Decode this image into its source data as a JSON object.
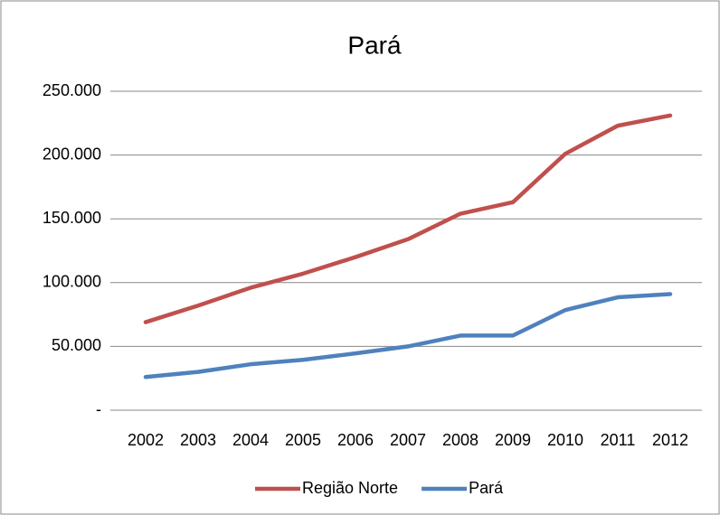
{
  "chart_data": {
    "type": "line",
    "title": "Pará",
    "categories": [
      "2002",
      "2003",
      "2004",
      "2005",
      "2006",
      "2007",
      "2008",
      "2009",
      "2010",
      "2011",
      "2012"
    ],
    "series": [
      {
        "name": "Região Norte",
        "color": "#c0504d",
        "values": [
          69000,
          82000,
          96000,
          107000,
          120000,
          134000,
          154000,
          163000,
          201000,
          223000,
          231000
        ]
      },
      {
        "name": "Pará",
        "color": "#4f81bd",
        "values": [
          26000,
          30000,
          36000,
          39500,
          44500,
          50000,
          58500,
          58500,
          78500,
          88500,
          91000
        ]
      }
    ],
    "ylim": [
      0,
      250000
    ],
    "yticks": [
      {
        "value": 0,
        "label": "-"
      },
      {
        "value": 50000,
        "label": "50.000"
      },
      {
        "value": 100000,
        "label": "100.000"
      },
      {
        "value": 150000,
        "label": "150.000"
      },
      {
        "value": 200000,
        "label": "200.000"
      },
      {
        "value": 250000,
        "label": "250.000"
      }
    ],
    "grid": true,
    "legend": "bottom"
  }
}
